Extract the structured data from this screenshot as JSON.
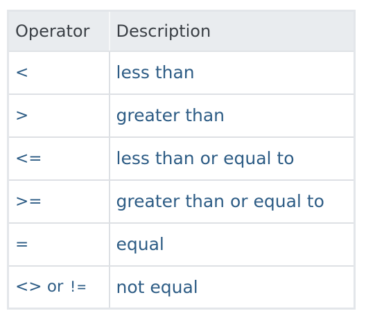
{
  "table": {
    "headers": {
      "operator": "Operator",
      "description": "Description"
    },
    "rows": [
      {
        "operator": "<",
        "description": "less than"
      },
      {
        "operator": ">",
        "description": "greater than"
      },
      {
        "operator": "<=",
        "description": "less than or equal to"
      },
      {
        "operator": ">=",
        "description": "greater than or equal to"
      },
      {
        "operator": "=",
        "description": "equal"
      },
      {
        "operator_a": "<>",
        "operator_or": "or",
        "operator_b": "!=",
        "description": "not equal"
      }
    ]
  }
}
